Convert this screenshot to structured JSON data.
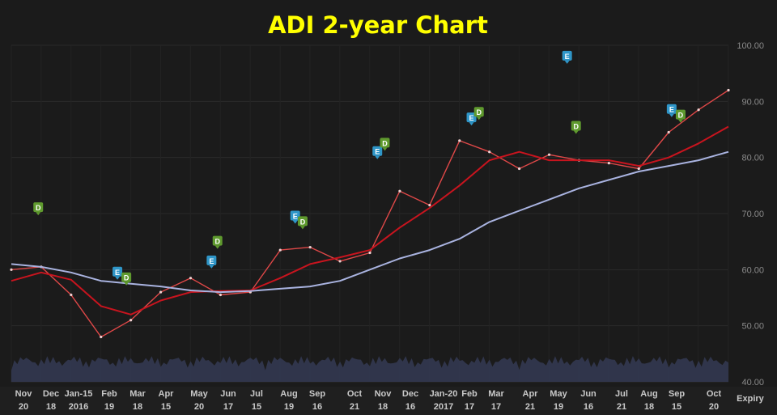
{
  "chart_data": {
    "type": "line",
    "title": "ADI 2-year Chart",
    "xlabel": "",
    "ylabel": "",
    "ylim": [
      40,
      100
    ],
    "yticks": [
      "40.00",
      "50.00",
      "60.00",
      "70.00",
      "80.00",
      "90.00",
      "100.00"
    ],
    "grid": true,
    "x_tick_labels": [
      {
        "top": "Nov",
        "bottom": "20"
      },
      {
        "top": "Dec",
        "bottom": "18"
      },
      {
        "top": "Jan-15",
        "bottom": "2016"
      },
      {
        "top": "Feb",
        "bottom": "19"
      },
      {
        "top": "Mar",
        "bottom": "18"
      },
      {
        "top": "Apr",
        "bottom": "15"
      },
      {
        "top": "May",
        "bottom": "20"
      },
      {
        "top": "Jun",
        "bottom": "17"
      },
      {
        "top": "Jul",
        "bottom": "15"
      },
      {
        "top": "Aug",
        "bottom": "19"
      },
      {
        "top": "Sep",
        "bottom": "16"
      },
      {
        "top": "Oct",
        "bottom": "21"
      },
      {
        "top": "Nov",
        "bottom": "18"
      },
      {
        "top": "Dec",
        "bottom": "16"
      },
      {
        "top": "Jan-20",
        "bottom": "2017"
      },
      {
        "top": "Feb",
        "bottom": "17"
      },
      {
        "top": "Mar",
        "bottom": "17"
      },
      {
        "top": "Apr",
        "bottom": "21"
      },
      {
        "top": "May",
        "bottom": "19"
      },
      {
        "top": "Jun",
        "bottom": "16"
      },
      {
        "top": "Jul",
        "bottom": "21"
      },
      {
        "top": "Aug",
        "bottom": "18"
      },
      {
        "top": "Sep",
        "bottom": "15"
      },
      {
        "top": "Oct",
        "bottom": "20"
      }
    ],
    "expiry_label": "Expiry",
    "x_index": [
      0,
      1,
      2,
      3,
      4,
      5,
      6,
      7,
      8,
      9,
      10,
      11,
      12,
      13,
      14,
      15,
      16,
      17,
      18,
      19,
      20,
      21,
      22,
      23,
      24
    ],
    "series": [
      {
        "values": [
          60,
          60.5,
          55.5,
          48,
          51,
          56,
          58.5,
          55.5,
          56,
          63.5,
          64,
          61.5,
          63,
          74,
          71.5,
          83,
          81,
          78,
          80.5,
          79.5,
          79,
          78,
          84.5,
          88.5,
          92
        ],
        "color": "#e04848"
      },
      {
        "values": [
          58,
          59.5,
          58.2,
          53.5,
          52,
          54.5,
          56,
          56.2,
          56.3,
          58.5,
          61,
          62.2,
          63.5,
          67.5,
          71,
          75,
          79.5,
          81,
          79.5,
          79.5,
          79.5,
          78.5,
          80,
          82.5,
          85.5
        ],
        "color": "#c8141e"
      },
      {
        "values": [
          61,
          60.5,
          59.5,
          58,
          57.5,
          57,
          56.3,
          56,
          56.2,
          56.6,
          57,
          58,
          60,
          62,
          63.5,
          65.5,
          68.5,
          70.5,
          72.5,
          74.5,
          76,
          77.5,
          78.5,
          79.5,
          81
        ],
        "color": "#a9b3e0"
      }
    ],
    "volume_color": "#343a54",
    "markers": [
      {
        "label": "D",
        "x": 0.9,
        "y": 71
      },
      {
        "label": "E",
        "x": 3.55,
        "y": 59.5
      },
      {
        "label": "D",
        "x": 3.85,
        "y": 58.5
      },
      {
        "label": "E",
        "x": 6.7,
        "y": 61.5
      },
      {
        "label": "D",
        "x": 6.9,
        "y": 65
      },
      {
        "label": "E",
        "x": 9.5,
        "y": 69.5
      },
      {
        "label": "D",
        "x": 9.75,
        "y": 68.5
      },
      {
        "label": "E",
        "x": 12.25,
        "y": 81
      },
      {
        "label": "D",
        "x": 12.5,
        "y": 82.5
      },
      {
        "label": "E",
        "x": 15.4,
        "y": 87
      },
      {
        "label": "D",
        "x": 15.65,
        "y": 88
      },
      {
        "label": "E",
        "x": 18.6,
        "y": 98
      },
      {
        "label": "D",
        "x": 18.9,
        "y": 85.5
      },
      {
        "label": "E",
        "x": 22.1,
        "y": 88.5
      },
      {
        "label": "D",
        "x": 22.4,
        "y": 87.5
      }
    ],
    "marker_colors": {
      "E": "#2f96c8",
      "D": "#5f9a2e"
    },
    "title_color": "#ffff00"
  }
}
